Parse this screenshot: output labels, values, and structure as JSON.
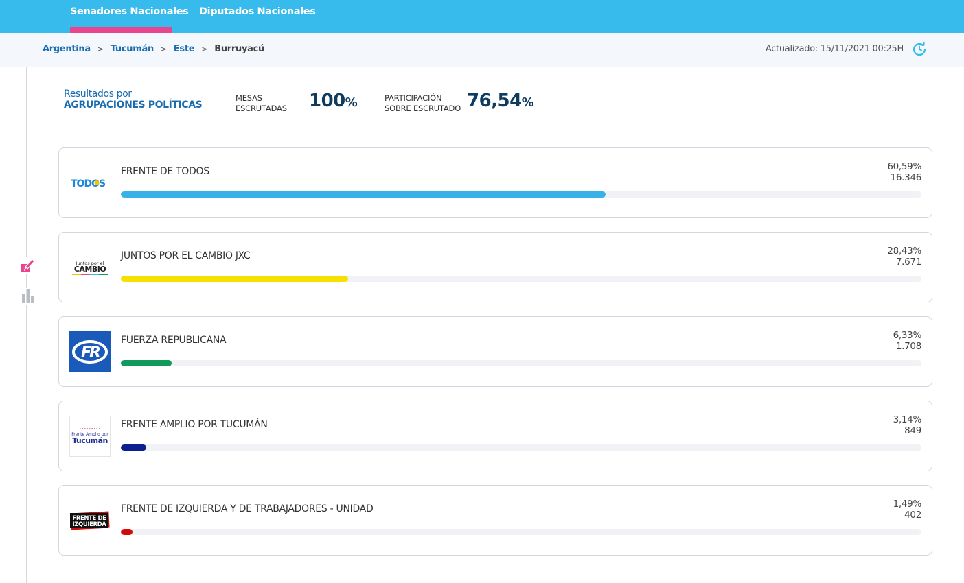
{
  "nav": {
    "tabs": [
      {
        "label": "Senadores Nacionales",
        "active": true
      },
      {
        "label": "Diputados Nacionales",
        "active": false
      }
    ]
  },
  "breadcrumb": {
    "items": [
      "Argentina",
      "Tucumán",
      "Este"
    ],
    "separator": ">",
    "current": "Burruyacú"
  },
  "updated": "Actualizado: 15/11/2021 00:25H",
  "summary": {
    "label_line1": "Resultados por",
    "label_line2": "AGRUPACIONES POLÍTICAS",
    "mesas_label_1": "MESAS",
    "mesas_label_2": "ESCRUTADAS",
    "mesas_value": "100",
    "participacion_label_1": "PARTICIPACIÓN",
    "participacion_label_2": "SOBRE ESCRUTADO",
    "participacion_value": "76,54",
    "pct_sign": "%"
  },
  "parties": [
    {
      "name": "FRENTE DE TODOS",
      "percent": "60,59%",
      "votes": "16.346",
      "share": 60.59,
      "color": "#37b1e8",
      "logo": "todos-logo",
      "logo_text": "TODOS"
    },
    {
      "name": "JUNTOS POR EL CAMBIO JXC",
      "percent": "28,43%",
      "votes": "7.671",
      "share": 28.43,
      "color": "#f5e000",
      "logo": "cambio-logo",
      "logo_text_1": "Juntos por el",
      "logo_text_2": "CAMBIO"
    },
    {
      "name": "FUERZA REPUBLICANA",
      "percent": "6,33%",
      "votes": "1.708",
      "share": 6.33,
      "color": "#12995c",
      "logo": "fuerza-republicana-logo",
      "logo_text": "FR"
    },
    {
      "name": "FRENTE AMPLIO POR TUCUMÁN",
      "percent": "3,14%",
      "votes": "849",
      "share": 3.14,
      "color": "#0c1f8f",
      "logo": "frente-amplio-logo",
      "logo_text_1": "Frente Amplio por",
      "logo_text_2": "Tucumán"
    },
    {
      "name": "FRENTE DE IZQUIERDA Y DE TRABAJADORES - UNIDAD",
      "percent": "1,49%",
      "votes": "402",
      "share": 1.49,
      "color": "#d30a0a",
      "logo": "fit-logo",
      "logo_text_1": "FRENTE DE",
      "logo_text_2": "IZQUIERDA"
    }
  ]
}
